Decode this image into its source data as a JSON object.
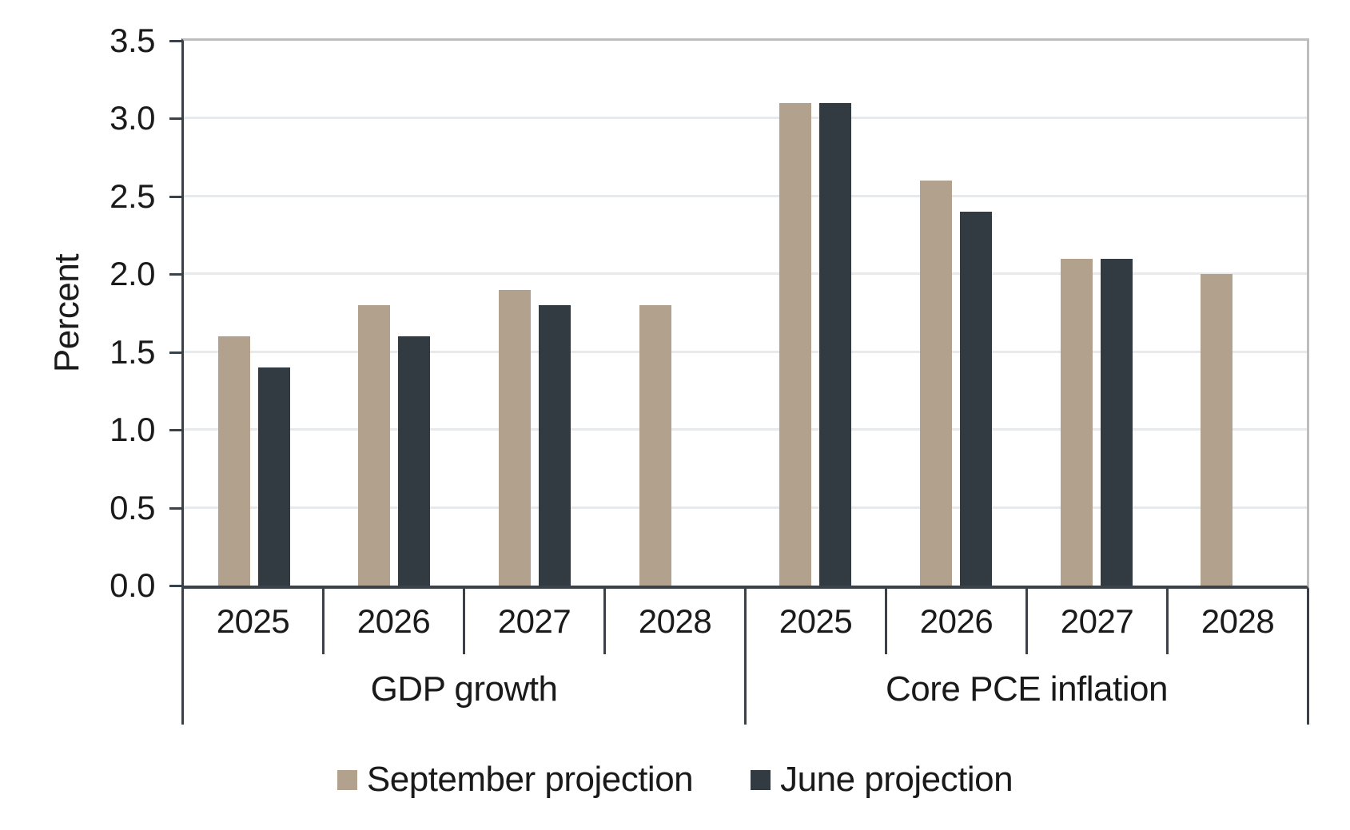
{
  "chart_data": {
    "type": "bar",
    "title": "",
    "ylabel": "Percent",
    "ylim": [
      0,
      3.5
    ],
    "yticks": [
      "0.0",
      "0.5",
      "1.0",
      "1.5",
      "2.0",
      "2.5",
      "3.0",
      "3.5"
    ],
    "grid": true,
    "legend_position": "bottom",
    "categories": [
      "2025",
      "2026",
      "2027",
      "2028"
    ],
    "groups": [
      {
        "label": "GDP growth"
      },
      {
        "label": "Core PCE inflation"
      }
    ],
    "series": [
      {
        "name": "September projection",
        "color": "#b2a18d",
        "values": [
          [
            1.6,
            1.8,
            1.9,
            1.8
          ],
          [
            3.1,
            2.6,
            2.1,
            2.0
          ]
        ]
      },
      {
        "name": "June projection",
        "color": "#333b42",
        "values": [
          [
            1.4,
            1.6,
            1.8,
            null
          ],
          [
            3.1,
            2.4,
            2.1,
            null
          ]
        ]
      }
    ]
  }
}
